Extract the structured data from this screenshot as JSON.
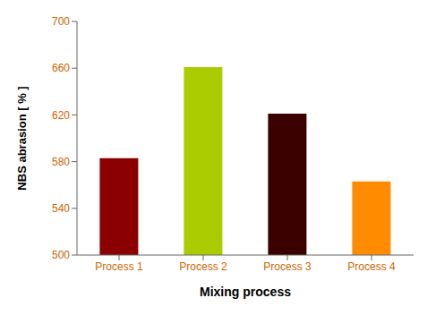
{
  "chart_data": {
    "type": "bar",
    "categories": [
      "Process 1",
      "Process 2",
      "Process 3",
      "Process 4"
    ],
    "values": [
      583,
      661,
      621,
      563
    ],
    "colors": [
      "#8B0000",
      "#AACC00",
      "#3B0000",
      "#FF8C00"
    ],
    "xlabel": "Mixing process",
    "ylabel": "NBS abrasion [ % ]",
    "ylim": [
      500,
      700
    ],
    "yticks": [
      500,
      540,
      580,
      620,
      660,
      700
    ],
    "grid": false
  }
}
